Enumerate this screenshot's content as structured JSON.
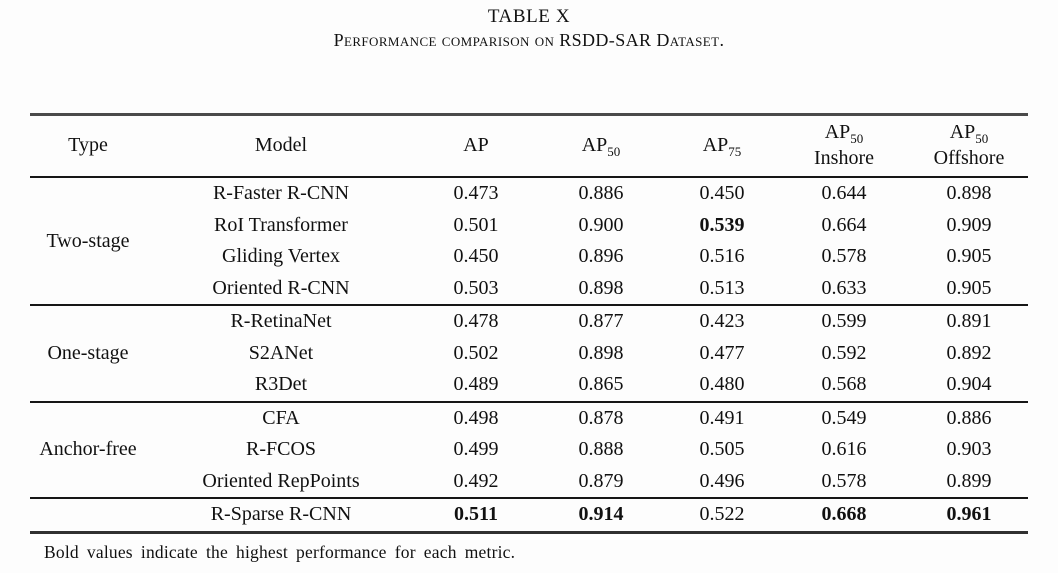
{
  "page": {
    "title": "TABLE X",
    "subtitle": "Performance comparison on RSDD-SAR Dataset.",
    "footnote": "Bold values indicate the highest performance for each metric."
  },
  "table": {
    "columns": [
      {
        "text": "Type"
      },
      {
        "text": "Model"
      },
      {
        "text": "AP"
      },
      {
        "text": "AP",
        "sub": "50"
      },
      {
        "text": "AP",
        "sub": "75"
      },
      {
        "text": "AP",
        "sub": "50",
        "line2": "Inshore"
      },
      {
        "text": "AP",
        "sub": "50",
        "line2": "Offshore"
      }
    ],
    "groups": [
      {
        "type": "Two-stage",
        "rows": [
          {
            "model": "R-Faster R-CNN",
            "values": [
              "0.473",
              "0.886",
              "0.450",
              "0.644",
              "0.898"
            ],
            "bold": []
          },
          {
            "model": "RoI Transformer",
            "values": [
              "0.501",
              "0.900",
              "0.539",
              "0.664",
              "0.909"
            ],
            "bold": [
              2
            ]
          },
          {
            "model": "Gliding Vertex",
            "values": [
              "0.450",
              "0.896",
              "0.516",
              "0.578",
              "0.905"
            ],
            "bold": []
          },
          {
            "model": "Oriented R-CNN",
            "values": [
              "0.503",
              "0.898",
              "0.513",
              "0.633",
              "0.905"
            ],
            "bold": []
          }
        ]
      },
      {
        "type": "One-stage",
        "rows": [
          {
            "model": "R-RetinaNet",
            "values": [
              "0.478",
              "0.877",
              "0.423",
              "0.599",
              "0.891"
            ],
            "bold": []
          },
          {
            "model": "S2ANet",
            "values": [
              "0.502",
              "0.898",
              "0.477",
              "0.592",
              "0.892"
            ],
            "bold": []
          },
          {
            "model": "R3Det",
            "values": [
              "0.489",
              "0.865",
              "0.480",
              "0.568",
              "0.904"
            ],
            "bold": []
          }
        ]
      },
      {
        "type": "Anchor-free",
        "rows": [
          {
            "model": "CFA",
            "values": [
              "0.498",
              "0.878",
              "0.491",
              "0.549",
              "0.886"
            ],
            "bold": []
          },
          {
            "model": "R-FCOS",
            "values": [
              "0.499",
              "0.888",
              "0.505",
              "0.616",
              "0.903"
            ],
            "bold": []
          },
          {
            "model": "Oriented RepPoints",
            "values": [
              "0.492",
              "0.879",
              "0.496",
              "0.578",
              "0.899"
            ],
            "bold": []
          }
        ]
      },
      {
        "type": "",
        "rows": [
          {
            "model": "R-Sparse R-CNN",
            "values": [
              "0.511",
              "0.914",
              "0.522",
              "0.668",
              "0.961"
            ],
            "bold": [
              0,
              1,
              3,
              4
            ]
          }
        ]
      }
    ]
  }
}
